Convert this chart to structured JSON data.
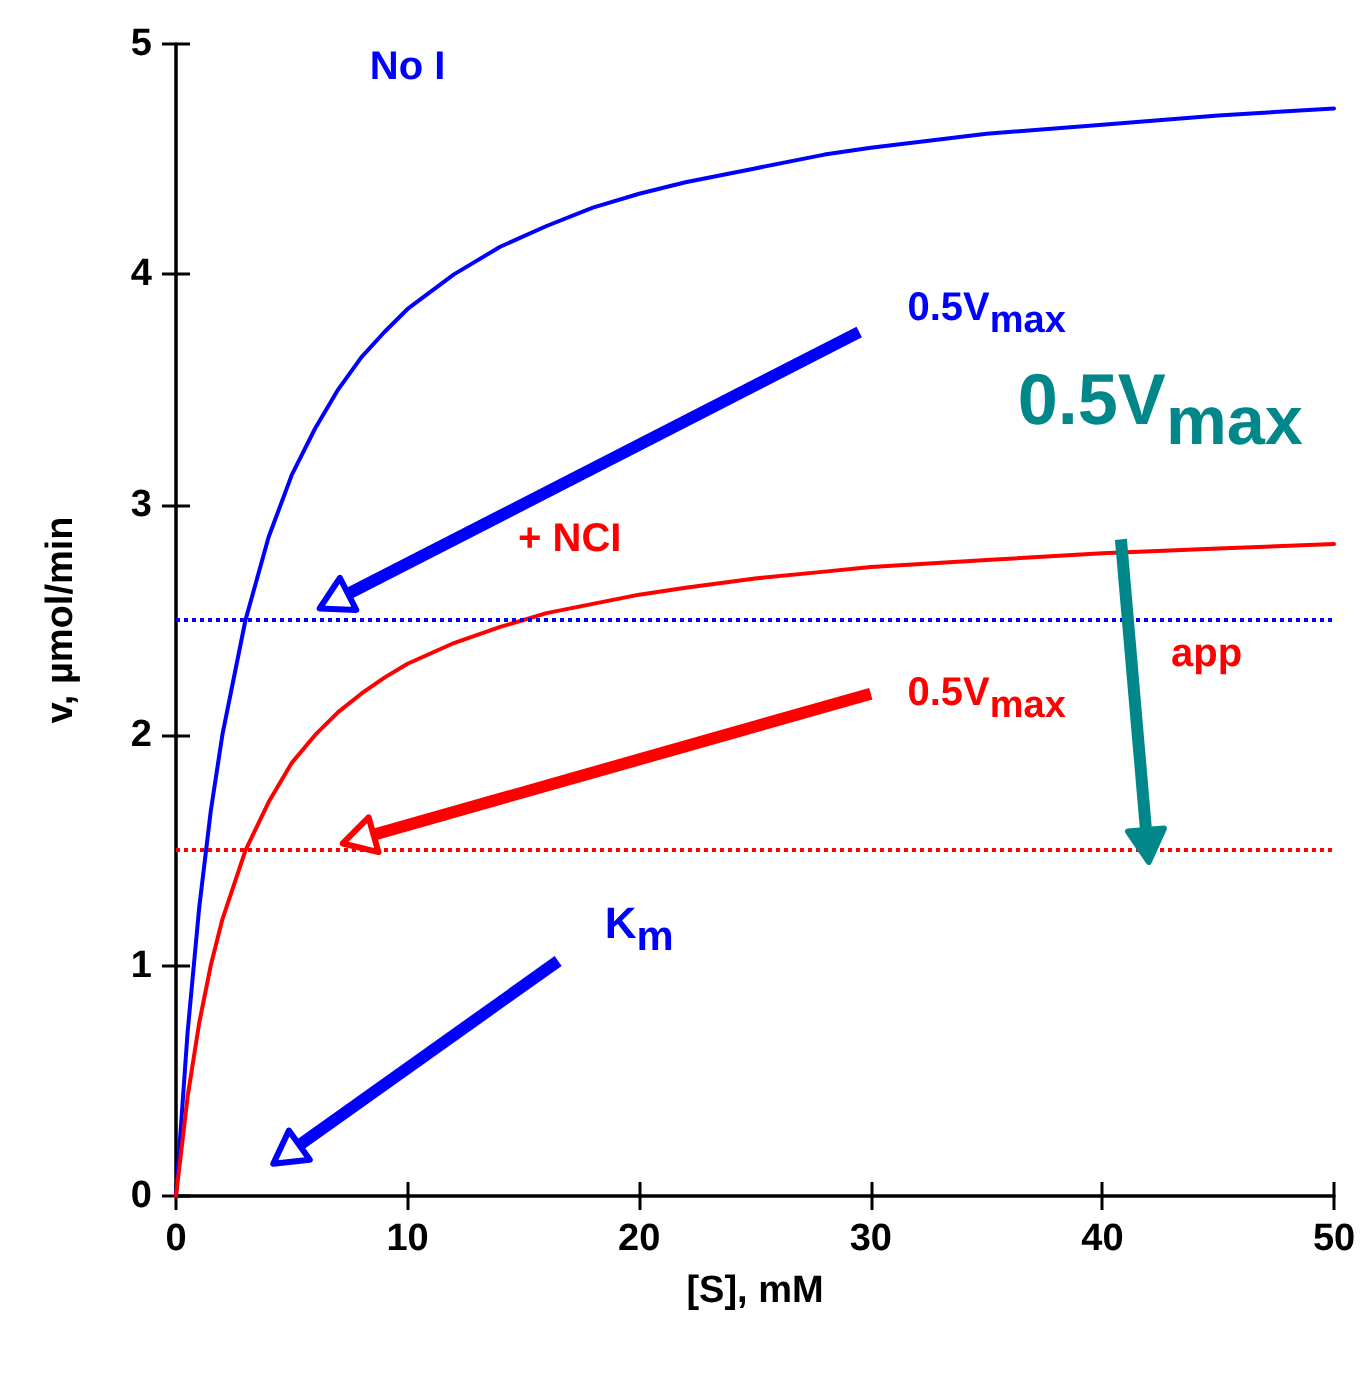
{
  "chart_data": {
    "type": "line",
    "xlabel": "[S], mM",
    "ylabel": "v, µmol/min",
    "x": [
      0,
      0.5,
      1,
      1.5,
      2,
      3,
      4,
      5,
      6,
      7,
      8,
      9,
      10,
      12,
      14,
      16,
      18,
      20,
      22,
      25,
      28,
      30,
      35,
      40,
      45,
      50
    ],
    "series": [
      {
        "name": "No I",
        "color": "#0000ff",
        "values": [
          0,
          0.71,
          1.25,
          1.67,
          2.0,
          2.5,
          2.86,
          3.13,
          3.33,
          3.5,
          3.64,
          3.75,
          3.85,
          4.0,
          4.12,
          4.21,
          4.29,
          4.35,
          4.4,
          4.46,
          4.52,
          4.55,
          4.61,
          4.65,
          4.69,
          4.72
        ]
      },
      {
        "name": "+ NCI",
        "color": "#ff0000",
        "values": [
          0,
          0.43,
          0.75,
          1.0,
          1.2,
          1.5,
          1.71,
          1.88,
          2.0,
          2.1,
          2.18,
          2.25,
          2.31,
          2.4,
          2.47,
          2.53,
          2.57,
          2.61,
          2.64,
          2.68,
          2.71,
          2.73,
          2.76,
          2.79,
          2.81,
          2.83
        ]
      }
    ],
    "xlim": [
      0,
      50
    ],
    "xticks": [
      0,
      10,
      20,
      30,
      40,
      50
    ],
    "ylim": [
      0,
      5
    ],
    "yticks": [
      0,
      1,
      2,
      3,
      4,
      5
    ],
    "grid": false,
    "legend": false,
    "marker": "none",
    "line_style": "solid",
    "ref_lines": [
      {
        "axis": "y",
        "value": 2.5,
        "color": "#0000ff",
        "line_style": "dotted"
      },
      {
        "axis": "y",
        "value": 1.5,
        "color": "#ff0000",
        "line_style": "dotted"
      }
    ],
    "annotations": [
      "0.5V$_{max}$",
      "0.5V$_{max}$",
      "0.5V$_{max}$",
      "app",
      "K$_{m}$"
    ]
  }
}
